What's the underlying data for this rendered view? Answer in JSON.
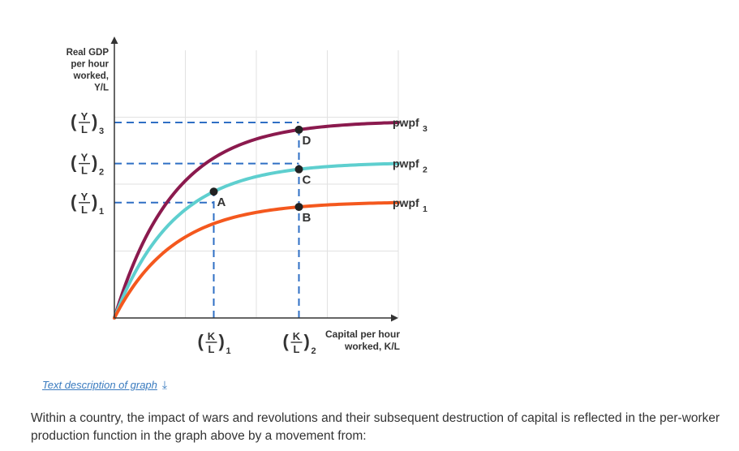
{
  "chart_data": {
    "type": "line",
    "title": "",
    "ylabel": [
      "Real GDP",
      "per hour",
      "worked,",
      "Y/L"
    ],
    "xlabel": [
      "Capital per hour",
      "worked, K/L"
    ],
    "series": [
      {
        "name": "pwpf",
        "subscript": "3",
        "color": "#8b1a4e",
        "scale": 1.0
      },
      {
        "name": "pwpf",
        "subscript": "2",
        "color": "#5ecfcf",
        "scale": 0.79
      },
      {
        "name": "pwpf",
        "subscript": "1",
        "color": "#f4581e",
        "scale": 0.59
      }
    ],
    "y_levels": [
      {
        "base": "Y",
        "over": "L",
        "subscript": "3",
        "value": 1.0
      },
      {
        "base": "Y",
        "over": "L",
        "subscript": "2",
        "value": 0.79
      },
      {
        "base": "Y",
        "over": "L",
        "subscript": "1",
        "value": 0.59
      }
    ],
    "x_levels": [
      {
        "base": "K",
        "over": "L",
        "subscript": "1",
        "value": 0.35
      },
      {
        "base": "K",
        "over": "L",
        "subscript": "2",
        "value": 0.65
      }
    ],
    "points": [
      {
        "label": "A",
        "series": 2,
        "x": 0.35
      },
      {
        "label": "B",
        "series": 3,
        "x": 0.65
      },
      {
        "label": "C",
        "series": 2,
        "x": 0.65
      },
      {
        "label": "D",
        "series": 1,
        "x": 0.65
      }
    ]
  },
  "text_description_link": "Text description of graph",
  "question": "Within a country, the impact of wars and revolutions and their subsequent destruction of capital is reflected in the per-worker production function in the graph above by a movement from:"
}
